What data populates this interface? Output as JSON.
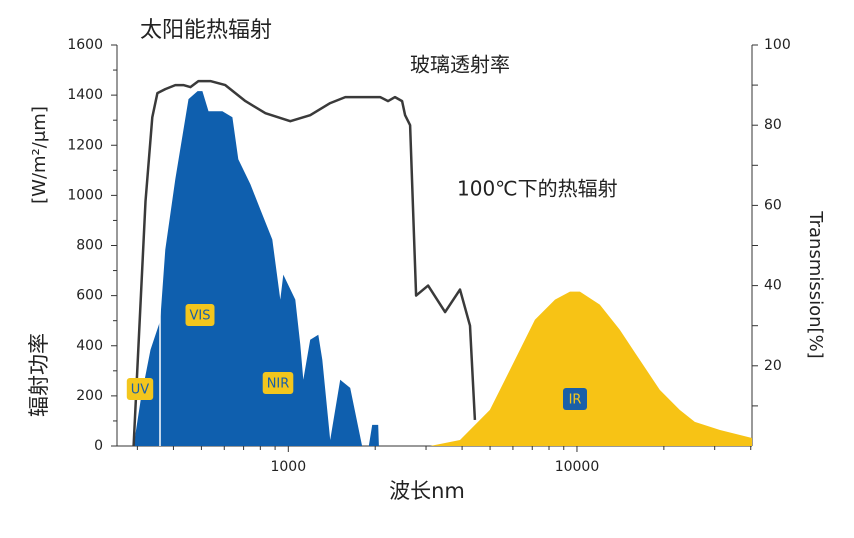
{
  "chart_data": {
    "type": "area",
    "x_label": "波长nm",
    "y_label": "辐射功率",
    "y_unit": "[W/m²/μm]",
    "y2_label": "Transmission[%]",
    "xscale": "log",
    "xlim": [
      255,
      40400
    ],
    "xticks": [
      1000,
      10000
    ],
    "xminorticks": [
      300,
      400,
      500,
      600,
      700,
      800,
      900,
      2000,
      3000,
      4000,
      5000,
      6000,
      7000,
      8000,
      9000,
      20000,
      30000,
      40000
    ],
    "ylim": [
      0,
      1600
    ],
    "yticks": [
      0,
      200,
      400,
      600,
      800,
      1000,
      1200,
      1400,
      1600
    ],
    "yminorticks": [
      100,
      300,
      500,
      700,
      900,
      1100,
      1300,
      1500
    ],
    "y2lim": [
      0,
      100
    ],
    "y2ticks": [
      20,
      40,
      60,
      80,
      100
    ],
    "y2minorticks": [
      10,
      30,
      50,
      70,
      90
    ],
    "annotations": [
      "UV",
      "VIS",
      "NIR",
      "IR"
    ],
    "series": [
      {
        "name": "太阳能热辐射",
        "type": "area",
        "color": "#0f5fae",
        "x": [
          291,
          308,
          333,
          360,
          375,
          406,
          451,
          485,
          504,
          529,
          591,
          640,
          671,
          739,
          800,
          880,
          938,
          961,
          1057,
          1100,
          1127,
          1191,
          1270,
          1311,
          1397,
          1513,
          1638,
          1801,
          1900,
          1952,
          2049,
          2060
        ],
        "values": [
          0,
          184,
          384,
          500,
          784,
          1064,
          1384,
          1416,
          1416,
          1336,
          1336,
          1312,
          1144,
          1044,
          944,
          824,
          584,
          684,
          584,
          404,
          264,
          424,
          444,
          344,
          24,
          264,
          232,
          0,
          0,
          84,
          84,
          0
        ]
      },
      {
        "name": "玻璃透射率",
        "type": "line",
        "color": "#3a3a3a",
        "axis": "y2",
        "x": [
          291,
          320,
          338,
          352,
          375,
          406,
          433,
          458,
          488,
          537,
          605,
          710,
          833,
          1016,
          1191,
          1397,
          1575,
          1846,
          2081,
          2216,
          2343,
          2479,
          2539,
          2641,
          2771,
          3050,
          3492,
          3935,
          4260,
          4430
        ],
        "values": [
          0,
          61,
          82,
          88,
          89,
          90,
          90,
          89.5,
          91,
          91,
          90,
          86,
          83,
          81,
          82.5,
          85.5,
          87,
          87,
          87,
          86,
          87,
          86,
          82.5,
          80,
          37.5,
          40,
          33.4,
          39,
          30,
          6.5
        ]
      },
      {
        "name": "100℃下的热辐射",
        "type": "area",
        "color": "#f7c315",
        "x": [
          3100,
          3935,
          4995,
          5860,
          7150,
          8390,
          9460,
          10240,
          12000,
          14070,
          16500,
          19360,
          22700,
          25600,
          31300,
          40400
        ],
        "values": [
          0,
          24,
          144,
          304,
          504,
          584,
          616,
          616,
          564,
          464,
          344,
          224,
          144,
          96,
          64,
          32
        ]
      }
    ]
  }
}
